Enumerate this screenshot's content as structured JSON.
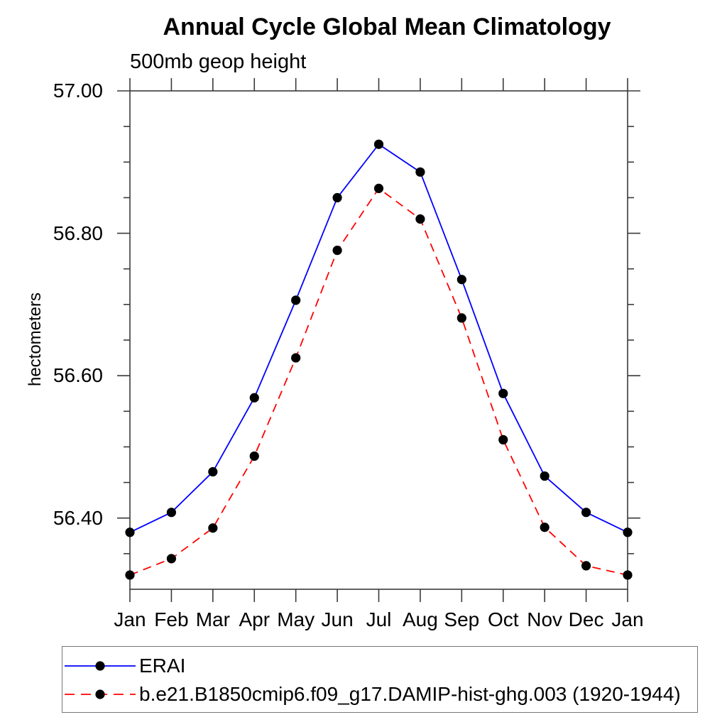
{
  "chart_data": {
    "type": "line",
    "title": "Annual Cycle Global Mean Climatology",
    "subtitle": "500mb geop height",
    "ylabel": "hectometers",
    "xlabel": "",
    "categories": [
      "Jan",
      "Feb",
      "Mar",
      "Apr",
      "May",
      "Jun",
      "Jul",
      "Aug",
      "Sep",
      "Oct",
      "Nov",
      "Dec",
      "Jan"
    ],
    "ylim": [
      56.3,
      57.0
    ],
    "yticks_major": [
      56.4,
      56.6,
      56.8,
      57.0
    ],
    "ytick_labels": [
      "56.40",
      "56.60",
      "56.80",
      "57.00"
    ],
    "ytick_minor_step": 0.05,
    "grid": false,
    "legend_position": "bottom",
    "axis_color": "#3a3a3a",
    "marker_shape": "filled-circle",
    "marker_color": "#000000",
    "series": [
      {
        "name": "ERAI",
        "color": "#0000ff",
        "style": "solid",
        "values": [
          56.38,
          56.408,
          56.465,
          56.569,
          56.706,
          56.85,
          56.925,
          56.886,
          56.735,
          56.575,
          56.459,
          56.408,
          56.38
        ]
      },
      {
        "name": "b.e21.B1850cmip6.f09_g17.DAMIP-hist-ghg.003 (1920-1944)",
        "color": "#ff0000",
        "style": "dashed",
        "values": [
          56.32,
          56.343,
          56.386,
          56.487,
          56.625,
          56.776,
          56.863,
          56.82,
          56.681,
          56.51,
          56.387,
          56.333,
          56.32
        ]
      }
    ]
  }
}
